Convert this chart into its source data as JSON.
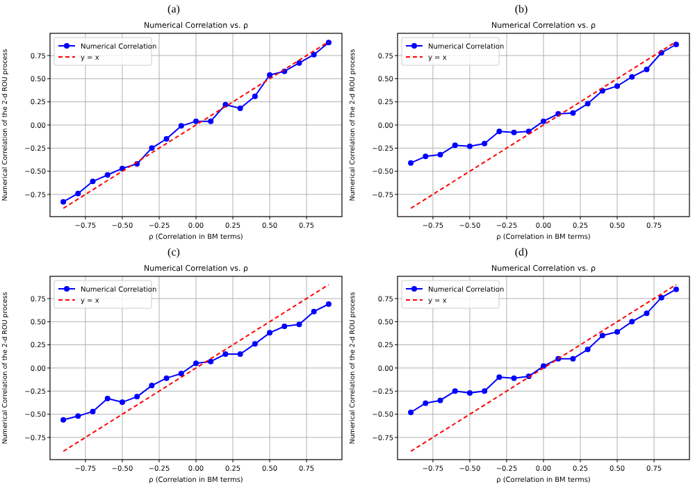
{
  "chart_data": [
    {
      "type": "line",
      "title": "Numerical Correlation vs. ρ",
      "annotations": [
        "(a)"
      ],
      "xlabel": "ρ (Correlation in BM terms)",
      "ylabel": "Numerical Correlation of the 2-d ROU process",
      "x": [
        -0.9,
        -0.8,
        -0.7,
        -0.6,
        -0.5,
        -0.4,
        -0.3,
        -0.2,
        -0.1,
        0,
        0.1,
        0.2,
        0.3,
        0.4,
        0.5,
        0.6,
        0.7,
        0.8,
        0.9
      ],
      "xlim": [
        -0.99,
        0.99
      ],
      "ylim": [
        -0.99,
        0.99
      ],
      "xticks": [
        {
          "value": -0.75,
          "label": "−0.75"
        },
        {
          "value": -0.5,
          "label": "−0.50"
        },
        {
          "value": -0.25,
          "label": "−0.25"
        },
        {
          "value": 0,
          "label": "0.00"
        },
        {
          "value": 0.25,
          "label": "0.25"
        },
        {
          "value": 0.5,
          "label": "0.50"
        },
        {
          "value": 0.75,
          "label": "0.75"
        }
      ],
      "yticks": [
        {
          "value": -0.75,
          "label": "−0.75"
        },
        {
          "value": -0.5,
          "label": "−0.50"
        },
        {
          "value": -0.25,
          "label": "−0.25"
        },
        {
          "value": 0,
          "label": "0.00"
        },
        {
          "value": 0.25,
          "label": "0.25"
        },
        {
          "value": 0.5,
          "label": "0.50"
        },
        {
          "value": 0.75,
          "label": "0.75"
        }
      ],
      "grid": true,
      "legend": "top left",
      "series": [
        {
          "name": "Numerical Correlation",
          "color": "#0000ff",
          "marker": "circle",
          "line_style": "solid",
          "values": [
            -0.83,
            -0.74,
            -0.61,
            -0.54,
            -0.47,
            -0.42,
            -0.25,
            -0.15,
            -0.01,
            0.04,
            0.04,
            0.22,
            0.18,
            0.31,
            0.54,
            0.58,
            0.67,
            0.76,
            0.89
          ]
        },
        {
          "name": "y = x",
          "color": "#ff0000",
          "marker": "none",
          "line_style": "dashed",
          "values": [
            -0.9,
            -0.8,
            -0.7,
            -0.6,
            -0.5,
            -0.4,
            -0.3,
            -0.2,
            -0.1,
            0,
            0.1,
            0.2,
            0.3,
            0.4,
            0.5,
            0.6,
            0.7,
            0.8,
            0.9
          ]
        }
      ]
    },
    {
      "type": "line",
      "title": "Numerical Correlation vs. ρ",
      "annotations": [
        "(b)"
      ],
      "xlabel": "ρ (Correlation in BM terms)",
      "ylabel": "Numerical Correlation of the 2-d ROU process",
      "x": [
        -0.9,
        -0.8,
        -0.7,
        -0.6,
        -0.5,
        -0.4,
        -0.3,
        -0.2,
        -0.1,
        0,
        0.1,
        0.2,
        0.3,
        0.4,
        0.5,
        0.6,
        0.7,
        0.8,
        0.9
      ],
      "xlim": [
        -0.99,
        0.99
      ],
      "ylim": [
        -0.99,
        0.99
      ],
      "xticks": [
        {
          "value": -0.75,
          "label": "−0.75"
        },
        {
          "value": -0.5,
          "label": "−0.50"
        },
        {
          "value": -0.25,
          "label": "−0.25"
        },
        {
          "value": 0,
          "label": "0.00"
        },
        {
          "value": 0.25,
          "label": "0.25"
        },
        {
          "value": 0.5,
          "label": "0.50"
        },
        {
          "value": 0.75,
          "label": "0.75"
        }
      ],
      "yticks": [
        {
          "value": -0.75,
          "label": "−0.75"
        },
        {
          "value": -0.5,
          "label": "−0.50"
        },
        {
          "value": -0.25,
          "label": "−0.25"
        },
        {
          "value": 0,
          "label": "0.00"
        },
        {
          "value": 0.25,
          "label": "0.25"
        },
        {
          "value": 0.5,
          "label": "0.50"
        },
        {
          "value": 0.75,
          "label": "0.75"
        }
      ],
      "grid": true,
      "legend": "top left",
      "series": [
        {
          "name": "Numerical Correlation",
          "color": "#0000ff",
          "marker": "circle",
          "line_style": "solid",
          "values": [
            -0.41,
            -0.34,
            -0.32,
            -0.22,
            -0.23,
            -0.2,
            -0.07,
            -0.08,
            -0.07,
            0.04,
            0.12,
            0.13,
            0.23,
            0.37,
            0.42,
            0.52,
            0.6,
            0.78,
            0.87
          ]
        },
        {
          "name": "y = x",
          "color": "#ff0000",
          "marker": "none",
          "line_style": "dashed",
          "values": [
            -0.9,
            -0.8,
            -0.7,
            -0.6,
            -0.5,
            -0.4,
            -0.3,
            -0.2,
            -0.1,
            0,
            0.1,
            0.2,
            0.3,
            0.4,
            0.5,
            0.6,
            0.7,
            0.8,
            0.9
          ]
        }
      ]
    },
    {
      "type": "line",
      "title": "Numerical Correlation vs. ρ",
      "annotations": [
        "(c)"
      ],
      "xlabel": "ρ (Correlation in BM terms)",
      "ylabel": "Numerical Correlation of the 2-d ROU process",
      "x": [
        -0.9,
        -0.8,
        -0.7,
        -0.6,
        -0.5,
        -0.4,
        -0.3,
        -0.2,
        -0.1,
        0,
        0.1,
        0.2,
        0.3,
        0.4,
        0.5,
        0.6,
        0.7,
        0.8,
        0.9
      ],
      "xlim": [
        -0.99,
        0.99
      ],
      "ylim": [
        -0.99,
        0.99
      ],
      "xticks": [
        {
          "value": -0.75,
          "label": "−0.75"
        },
        {
          "value": -0.5,
          "label": "−0.50"
        },
        {
          "value": -0.25,
          "label": "−0.25"
        },
        {
          "value": 0,
          "label": "0.00"
        },
        {
          "value": 0.25,
          "label": "0.25"
        },
        {
          "value": 0.5,
          "label": "0.50"
        },
        {
          "value": 0.75,
          "label": "0.75"
        }
      ],
      "yticks": [
        {
          "value": -0.75,
          "label": "−0.75"
        },
        {
          "value": -0.5,
          "label": "−0.50"
        },
        {
          "value": -0.25,
          "label": "−0.25"
        },
        {
          "value": 0,
          "label": "0.00"
        },
        {
          "value": 0.25,
          "label": "0.25"
        },
        {
          "value": 0.5,
          "label": "0.50"
        },
        {
          "value": 0.75,
          "label": "0.75"
        }
      ],
      "grid": true,
      "legend": "top left",
      "series": [
        {
          "name": "Numerical Correlation",
          "color": "#0000ff",
          "marker": "circle",
          "line_style": "solid",
          "values": [
            -0.56,
            -0.52,
            -0.47,
            -0.33,
            -0.37,
            -0.31,
            -0.19,
            -0.11,
            -0.06,
            0.05,
            0.07,
            0.15,
            0.15,
            0.26,
            0.38,
            0.45,
            0.47,
            0.61,
            0.69
          ]
        },
        {
          "name": "y = x",
          "color": "#ff0000",
          "marker": "none",
          "line_style": "dashed",
          "values": [
            -0.9,
            -0.8,
            -0.7,
            -0.6,
            -0.5,
            -0.4,
            -0.3,
            -0.2,
            -0.1,
            0,
            0.1,
            0.2,
            0.3,
            0.4,
            0.5,
            0.6,
            0.7,
            0.8,
            0.9
          ]
        }
      ]
    },
    {
      "type": "line",
      "title": "Numerical Correlation vs. ρ",
      "annotations": [
        "(d)"
      ],
      "xlabel": "ρ (Correlation in BM terms)",
      "ylabel": "Numerical Correlation of the 2-d ROU process",
      "x": [
        -0.9,
        -0.8,
        -0.7,
        -0.6,
        -0.5,
        -0.4,
        -0.3,
        -0.2,
        -0.1,
        0,
        0.1,
        0.2,
        0.3,
        0.4,
        0.5,
        0.6,
        0.7,
        0.8,
        0.9
      ],
      "xlim": [
        -0.99,
        0.99
      ],
      "ylim": [
        -0.99,
        0.99
      ],
      "xticks": [
        {
          "value": -0.75,
          "label": "−0.75"
        },
        {
          "value": -0.5,
          "label": "−0.50"
        },
        {
          "value": -0.25,
          "label": "−0.25"
        },
        {
          "value": 0,
          "label": "0.00"
        },
        {
          "value": 0.25,
          "label": "0.25"
        },
        {
          "value": 0.5,
          "label": "0.50"
        },
        {
          "value": 0.75,
          "label": "0.75"
        }
      ],
      "yticks": [
        {
          "value": -0.75,
          "label": "−0.75"
        },
        {
          "value": -0.5,
          "label": "−0.50"
        },
        {
          "value": -0.25,
          "label": "−0.25"
        },
        {
          "value": 0,
          "label": "0.00"
        },
        {
          "value": 0.25,
          "label": "0.25"
        },
        {
          "value": 0.5,
          "label": "0.50"
        },
        {
          "value": 0.75,
          "label": "0.75"
        }
      ],
      "grid": true,
      "legend": "top left",
      "series": [
        {
          "name": "Numerical Correlation",
          "color": "#0000ff",
          "marker": "circle",
          "line_style": "solid",
          "values": [
            -0.48,
            -0.38,
            -0.35,
            -0.25,
            -0.27,
            -0.25,
            -0.1,
            -0.11,
            -0.09,
            0.02,
            0.1,
            0.1,
            0.2,
            0.35,
            0.39,
            0.5,
            0.59,
            0.76,
            0.85
          ]
        },
        {
          "name": "y = x",
          "color": "#ff0000",
          "marker": "none",
          "line_style": "dashed",
          "values": [
            -0.9,
            -0.8,
            -0.7,
            -0.6,
            -0.5,
            -0.4,
            -0.3,
            -0.2,
            -0.1,
            0,
            0.1,
            0.2,
            0.3,
            0.4,
            0.5,
            0.6,
            0.7,
            0.8,
            0.9
          ]
        }
      ]
    }
  ]
}
